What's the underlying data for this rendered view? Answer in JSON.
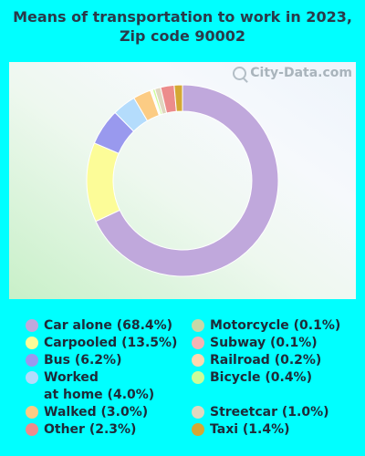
{
  "title": "Means of transportation to work in 2023, Zip code 90002",
  "watermark": "City-Data.com",
  "chart_data": {
    "type": "pie",
    "donut": true,
    "title": "Means of transportation to work in 2023, Zip code 90002",
    "slices": [
      {
        "label": "Car alone (68.4%)",
        "value": 68.4,
        "color": "#C0A8DC"
      },
      {
        "label": "Carpooled (13.5%)",
        "value": 13.5,
        "color": "#FCFC98"
      },
      {
        "label": "Bus (6.2%)",
        "value": 6.2,
        "color": "#9999EE"
      },
      {
        "label": "Worked at home (4.0%)",
        "value": 4.0,
        "color": "#B4DCFC"
      },
      {
        "label": "Walked (3.0%)",
        "value": 3.0,
        "color": "#FCCC84"
      },
      {
        "label": "Motorcycle (0.1%)",
        "value": 0.1,
        "color": "#C8D8A8"
      },
      {
        "label": "Subway (0.1%)",
        "value": 0.1,
        "color": "#F4B4B4"
      },
      {
        "label": "Railroad (0.2%)",
        "value": 0.2,
        "color": "#FCD8B0"
      },
      {
        "label": "Bicycle (0.4%)",
        "value": 0.4,
        "color": "#CCFC98"
      },
      {
        "label": "Streetcar (1.0%)",
        "value": 1.0,
        "color": "#E0D8C0"
      },
      {
        "label": "Other (2.3%)",
        "value": 2.3,
        "color": "#EC8C8C"
      },
      {
        "label": "Taxi (1.4%)",
        "value": 1.4,
        "color": "#D4A834"
      }
    ],
    "legend_left": [
      {
        "label": "Car alone (68.4%)",
        "color": "#C0A8DC"
      },
      {
        "label": "Carpooled (13.5%)",
        "color": "#FCFC98"
      },
      {
        "label": "Bus (6.2%)",
        "color": "#9999EE"
      },
      {
        "label": "Worked\nat home (4.0%)",
        "color": "#B4DCFC"
      },
      {
        "label": "Walked (3.0%)",
        "color": "#FCCC84"
      },
      {
        "label": "Other (2.3%)",
        "color": "#EC8C8C"
      }
    ],
    "legend_right": [
      {
        "label": "Motorcycle (0.1%)",
        "color": "#C8D8A8"
      },
      {
        "label": "Subway (0.1%)",
        "color": "#F4B4B4"
      },
      {
        "label": "Railroad (0.2%)",
        "color": "#FCD8B0"
      },
      {
        "label": "Bicycle (0.4%)",
        "color": "#CCFC98"
      },
      {
        "label": "Streetcar (1.0%)",
        "color": "#E0D8C0"
      },
      {
        "label": "Taxi (1.4%)",
        "color": "#D4A834"
      }
    ],
    "legend_placement": "bottom"
  }
}
